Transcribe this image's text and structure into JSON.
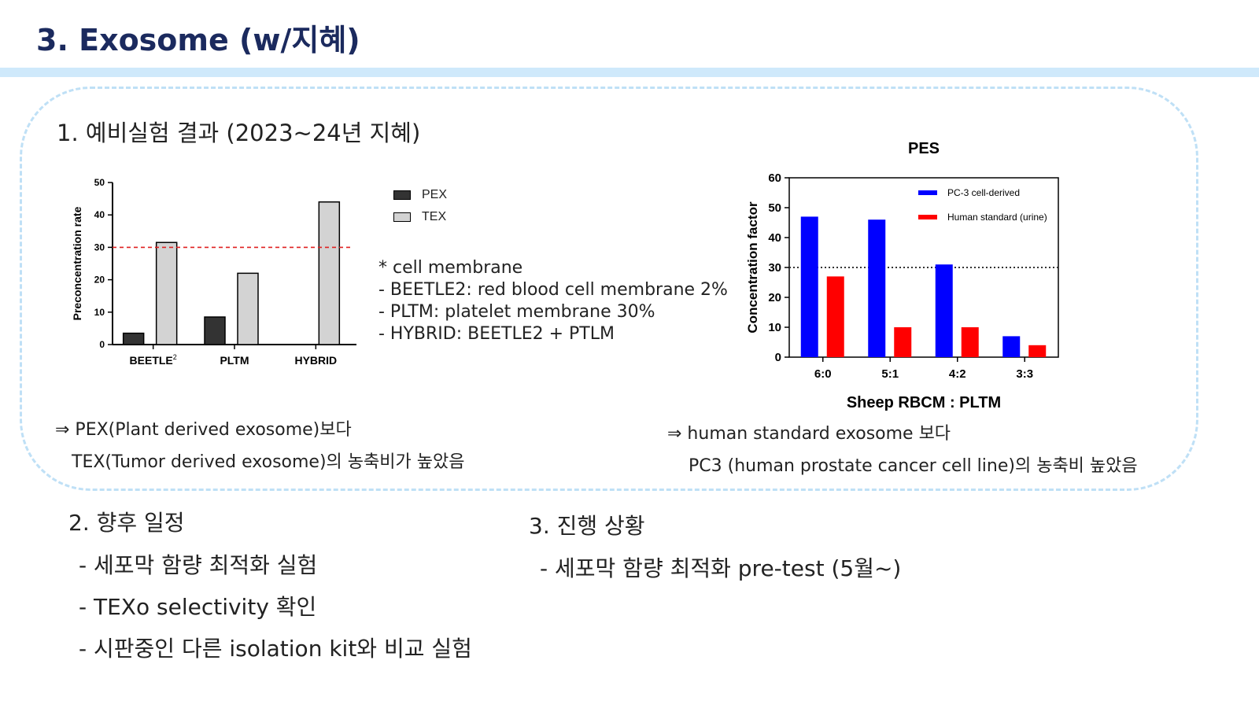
{
  "slide": {
    "title": "3. Exosome (w/지혜)"
  },
  "section1": {
    "heading": "1. 예비실험 결과 (2023~24년 지혜)",
    "notes": [
      "* cell membrane",
      "- BEETLE2: red blood cell membrane 2%",
      "- PLTM: platelet membrane 30%",
      "- HYBRID: BEETLE2 + PTLM"
    ],
    "conclusion_left": [
      "⇒ PEX(Plant derived exosome)보다",
      "TEX(Tumor derived exosome)의 농축비가 높았음"
    ],
    "conclusion_right": [
      "⇒ human standard exosome 보다",
      "PC3 (human prostate cancer cell line)의 농축비 높았음"
    ]
  },
  "section2": {
    "heading": "2. 향후 일정",
    "items": [
      "- 세포막 함량 최적화 실험",
      "- TEXo selectivity 확인",
      "- 시판중인 다른 isolation kit와 비교 실험"
    ]
  },
  "section3": {
    "heading": "3. 진행 상황",
    "items": [
      "- 세포막 함량 최적화 pre-test (5월~)"
    ]
  },
  "chart_data": [
    {
      "type": "bar",
      "title": "",
      "ylabel": "Preconcentration rate",
      "xlabel": "",
      "ylim": [
        0,
        50
      ],
      "yticks": [
        0,
        10,
        20,
        30,
        40,
        50
      ],
      "categories": [
        "BEETLE2",
        "PLTM",
        "HYBRID"
      ],
      "category_labels": [
        {
          "main": "BEETLE",
          "sup": "2"
        },
        {
          "main": "PLTM",
          "sup": ""
        },
        {
          "main": "HYBRID",
          "sup": ""
        }
      ],
      "series": [
        {
          "name": "PEX",
          "color": "#333333",
          "values": [
            3.5,
            8.5,
            0
          ]
        },
        {
          "name": "TEX",
          "color": "#d3d3d3",
          "values": [
            31.5,
            22,
            44
          ]
        }
      ],
      "reference_line": {
        "y": 30,
        "color": "#e02020",
        "style": "dashed"
      },
      "legend": "right-top outside",
      "grid": false
    },
    {
      "type": "bar",
      "title": "PES",
      "ylabel": "Concentration factor",
      "xlabel": "Sheep RBCM :  PLTM",
      "ylim": [
        0,
        60
      ],
      "yticks": [
        0,
        10,
        20,
        30,
        40,
        50,
        60
      ],
      "categories": [
        "6:0",
        "5:1",
        "4:2",
        "3:3"
      ],
      "series": [
        {
          "name": "PC-3 cell-derived",
          "color": "#0000ff",
          "values": [
            47,
            46,
            31,
            7
          ]
        },
        {
          "name": "Human standard (urine)",
          "color": "#ff0000",
          "values": [
            27,
            10,
            10,
            4
          ]
        }
      ],
      "reference_line": {
        "y": 30,
        "color": "#333333",
        "style": "dotted"
      },
      "legend": "top-right inside",
      "grid": false
    }
  ]
}
